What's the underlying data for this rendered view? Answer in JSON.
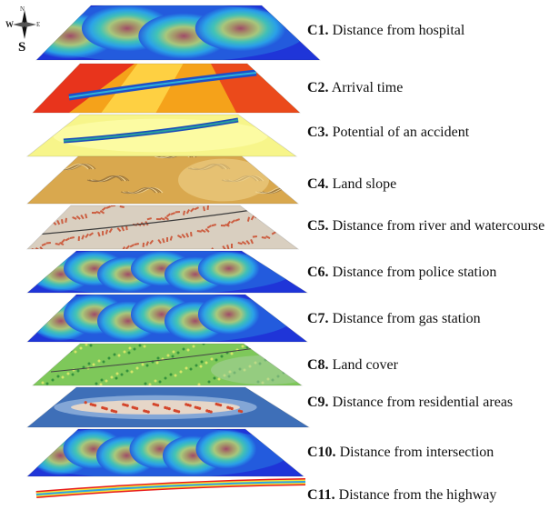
{
  "compass": {
    "n": "N",
    "w": "W",
    "e": "E",
    "s": "S"
  },
  "layers": [
    {
      "code": "C1.",
      "name": "Distance from hospital",
      "palette": "heat",
      "colors": [
        "#1f35d8",
        "#2aa4e8",
        "#4fd69a",
        "#f5e23a",
        "#f28a1c",
        "#e81b1b"
      ]
    },
    {
      "code": "C2.",
      "name": "Arrival time",
      "palette": "orange",
      "colors": [
        "#e8341c",
        "#f5a21a",
        "#ffd84a",
        "#1d4fc9",
        "#2fb3d6"
      ]
    },
    {
      "code": "C3.",
      "name": "Potential of an accident",
      "palette": "yellow",
      "colors": [
        "#f7f58a",
        "#fdfca8",
        "#1b4cb9",
        "#2aa19a"
      ]
    },
    {
      "code": "C4.",
      "name": "Land slope",
      "palette": "slope",
      "colors": [
        "#d9a84e",
        "#efd28a",
        "#8a6a3a",
        "#f6e6b3"
      ]
    },
    {
      "code": "C5.",
      "name": "Distance from river and watercourse",
      "palette": "river",
      "colors": [
        "#d9cfc0",
        "#c94a2a",
        "#eee7dc",
        "#3a3a3a"
      ]
    },
    {
      "code": "C6.",
      "name": "Distance from police station",
      "palette": "heat",
      "colors": [
        "#1f35d8",
        "#2aa4e8",
        "#4fd69a",
        "#f5e23a",
        "#f28a1c",
        "#e81b1b"
      ]
    },
    {
      "code": "C7.",
      "name": "Distance from gas station",
      "palette": "heat",
      "colors": [
        "#1f35d8",
        "#2aa4e8",
        "#4fd69a",
        "#f5e23a",
        "#f28a1c",
        "#e81b1b"
      ]
    },
    {
      "code": "C8.",
      "name": "Land cover",
      "palette": "cover",
      "colors": [
        "#7ec85a",
        "#dfe96a",
        "#2e8b3a",
        "#a7cfa0"
      ]
    },
    {
      "code": "C9.",
      "name": "Distance from residential areas",
      "palette": "resid",
      "colors": [
        "#3e6fb8",
        "#8fb0db",
        "#e6d6c8",
        "#d4452a"
      ]
    },
    {
      "code": "C10.",
      "name": "Distance from intersection",
      "palette": "heat",
      "colors": [
        "#1f35d8",
        "#2aa4e8",
        "#4fd69a",
        "#f5e23a",
        "#f28a1c",
        "#e81b1b"
      ]
    },
    {
      "code": "C11.",
      "name": "Distance from the highway",
      "palette": "strip",
      "colors": [
        "#e81b1b",
        "#f5e23a",
        "#2aa4e8",
        "#1f35d8"
      ]
    }
  ]
}
